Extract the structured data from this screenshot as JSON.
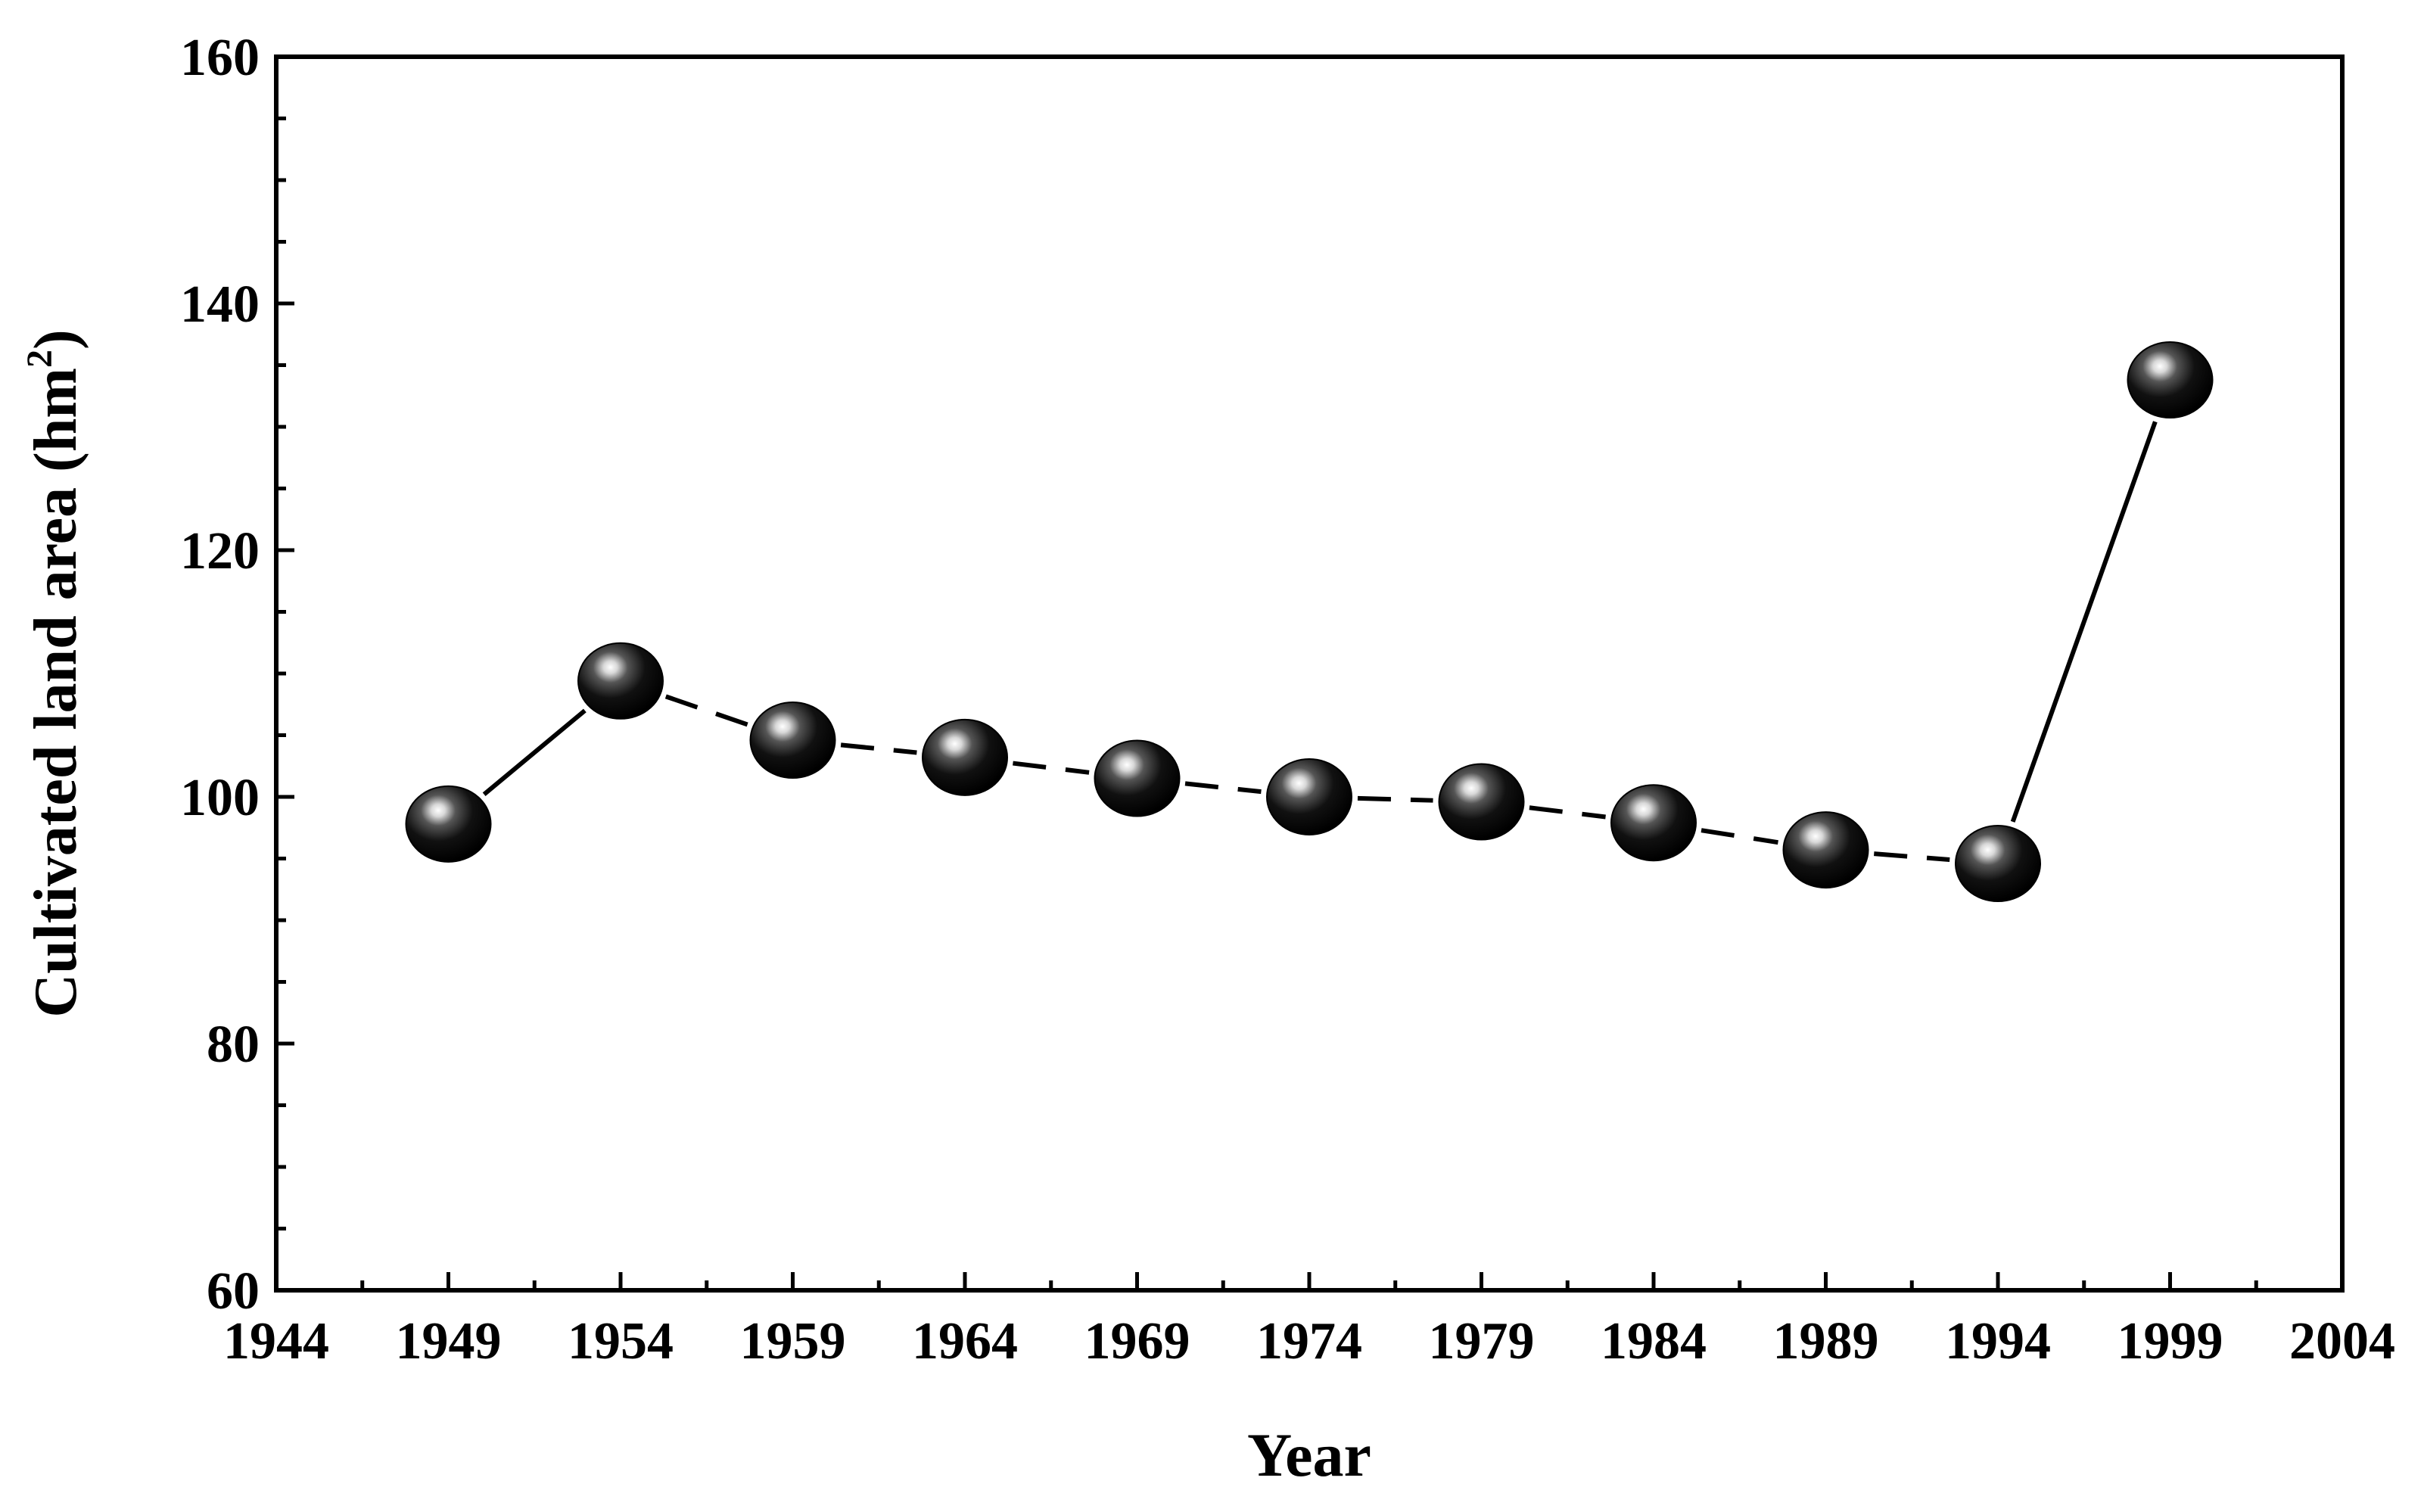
{
  "chart_data": {
    "type": "line",
    "xlabel": "Year",
    "ylabel_main": "Cultivated land area (hm",
    "ylabel_sup": "2",
    "ylabel_close": ")",
    "xlim": [
      1944,
      2004
    ],
    "ylim": [
      60,
      160
    ],
    "x_ticks": [
      1944,
      1949,
      1954,
      1959,
      1964,
      1969,
      1974,
      1979,
      1984,
      1989,
      1994,
      1999,
      2004
    ],
    "y_ticks": [
      60,
      80,
      100,
      120,
      140,
      160
    ],
    "y_minor_step": 5,
    "grid": false,
    "series": [
      {
        "x": [
          1949,
          1954,
          1959,
          1964,
          1969,
          1974,
          1979,
          1984,
          1989,
          1994,
          1999
        ],
        "y": [
          97.8,
          109.4,
          104.6,
          103.2,
          101.5,
          100.0,
          99.6,
          97.9,
          95.7,
          94.6,
          133.8
        ]
      }
    ],
    "segment_styles": [
      "solid",
      "dashed",
      "dashed",
      "dashed",
      "dashed",
      "dashed",
      "dashed",
      "dashed",
      "dashed",
      "solid"
    ],
    "line_color": "#000000",
    "marker_color": "#000000",
    "ylabel_color": "#4a1e0f"
  }
}
